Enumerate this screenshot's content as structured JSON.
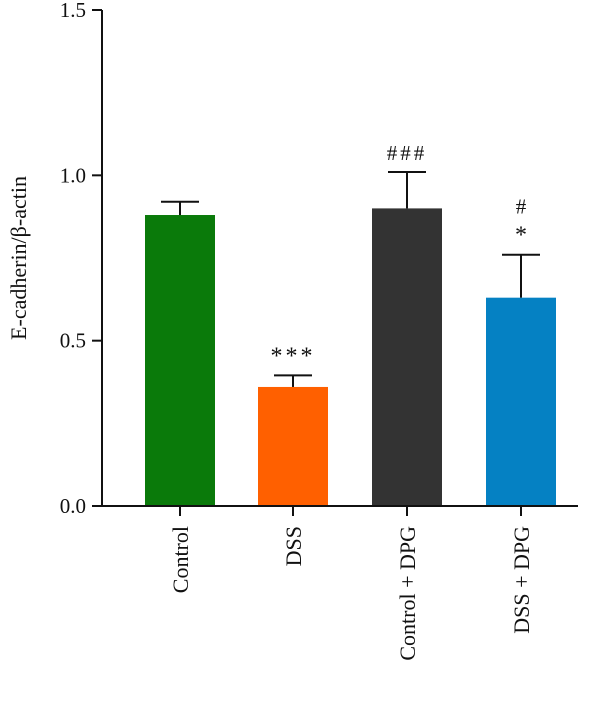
{
  "chart_data": {
    "type": "bar",
    "categories": [
      "Control",
      "DSS",
      "Control + DPG",
      "DSS + DPG"
    ],
    "values": [
      0.88,
      0.36,
      0.9,
      0.63
    ],
    "errors": [
      0.04,
      0.035,
      0.11,
      0.13
    ],
    "colors": [
      "#0a7a0a",
      "#ff6000",
      "#333333",
      "#0581c3"
    ],
    "annotations": [
      [],
      [
        "***"
      ],
      [
        "###"
      ],
      [
        "*",
        "#"
      ]
    ],
    "ylabel": "E-cadherin/β-actin",
    "ylim": [
      0,
      1.5
    ],
    "yticks": [
      "0.0",
      "0.5",
      "1.0",
      "1.5"
    ],
    "grid": false
  }
}
